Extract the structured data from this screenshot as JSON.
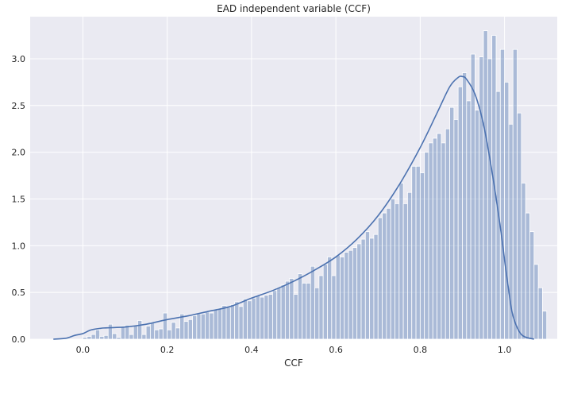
{
  "chart_data": {
    "type": "bar",
    "title": "EAD independent variable (CCF)",
    "xlabel": "CCF",
    "ylabel": "",
    "xlim": [
      -0.125,
      1.125
    ],
    "ylim": [
      0,
      3.45
    ],
    "xticks": [
      0.0,
      0.2,
      0.4,
      0.6,
      0.8,
      1.0
    ],
    "xtick_labels": [
      "0.0",
      "0.2",
      "0.4",
      "0.6",
      "0.8",
      "1.0"
    ],
    "yticks": [
      0.0,
      0.5,
      1.0,
      1.5,
      2.0,
      2.5,
      3.0
    ],
    "ytick_labels": [
      "0.0",
      "0.5",
      "1.0",
      "1.5",
      "2.0",
      "2.5",
      "3.0"
    ],
    "grid": true,
    "bin_start": 0.0,
    "bin_width": 0.01,
    "values": [
      0.02,
      0.03,
      0.05,
      0.1,
      0.03,
      0.04,
      0.16,
      0.06,
      0.02,
      0.14,
      0.15,
      0.05,
      0.14,
      0.2,
      0.05,
      0.14,
      0.18,
      0.1,
      0.11,
      0.28,
      0.1,
      0.18,
      0.12,
      0.27,
      0.19,
      0.21,
      0.25,
      0.27,
      0.27,
      0.29,
      0.28,
      0.32,
      0.33,
      0.36,
      0.34,
      0.37,
      0.4,
      0.35,
      0.43,
      0.41,
      0.44,
      0.47,
      0.45,
      0.47,
      0.48,
      0.52,
      0.55,
      0.58,
      0.62,
      0.65,
      0.48,
      0.7,
      0.6,
      0.6,
      0.78,
      0.55,
      0.68,
      0.8,
      0.88,
      0.68,
      0.9,
      0.88,
      0.93,
      0.95,
      0.98,
      1.02,
      1.07,
      1.15,
      1.08,
      1.12,
      1.3,
      1.35,
      1.4,
      1.5,
      1.45,
      1.67,
      1.45,
      1.57,
      1.85,
      1.85,
      1.78,
      2.0,
      2.1,
      2.15,
      2.2,
      2.1,
      2.25,
      2.48,
      2.35,
      2.7,
      2.85,
      2.55,
      3.05,
      2.45,
      3.02,
      3.3,
      3.0,
      3.25,
      2.65,
      3.1,
      2.75,
      2.3,
      3.1,
      2.42,
      1.67,
      1.35,
      1.15,
      0.8,
      0.55,
      0.3
    ],
    "kde": {
      "x": [
        -0.07,
        -0.04,
        -0.02,
        0.0,
        0.02,
        0.05,
        0.1,
        0.15,
        0.2,
        0.25,
        0.3,
        0.35,
        0.4,
        0.45,
        0.5,
        0.55,
        0.6,
        0.65,
        0.7,
        0.75,
        0.8,
        0.84,
        0.87,
        0.89,
        0.9,
        0.91,
        0.93,
        0.95,
        0.97,
        0.99,
        1.0,
        1.01,
        1.02,
        1.04,
        1.07
      ],
      "y": [
        0.0,
        0.01,
        0.04,
        0.06,
        0.1,
        0.12,
        0.13,
        0.16,
        0.21,
        0.25,
        0.3,
        0.35,
        0.44,
        0.52,
        0.62,
        0.74,
        0.88,
        1.07,
        1.32,
        1.65,
        2.05,
        2.42,
        2.7,
        2.8,
        2.81,
        2.78,
        2.62,
        2.3,
        1.8,
        1.2,
        0.85,
        0.52,
        0.25,
        0.05,
        0.0
      ]
    },
    "colors": {
      "background": "#eaeaf2",
      "grid": "#ffffff",
      "bar_fill": "#4c72b0",
      "line": "#4c72b0"
    }
  }
}
